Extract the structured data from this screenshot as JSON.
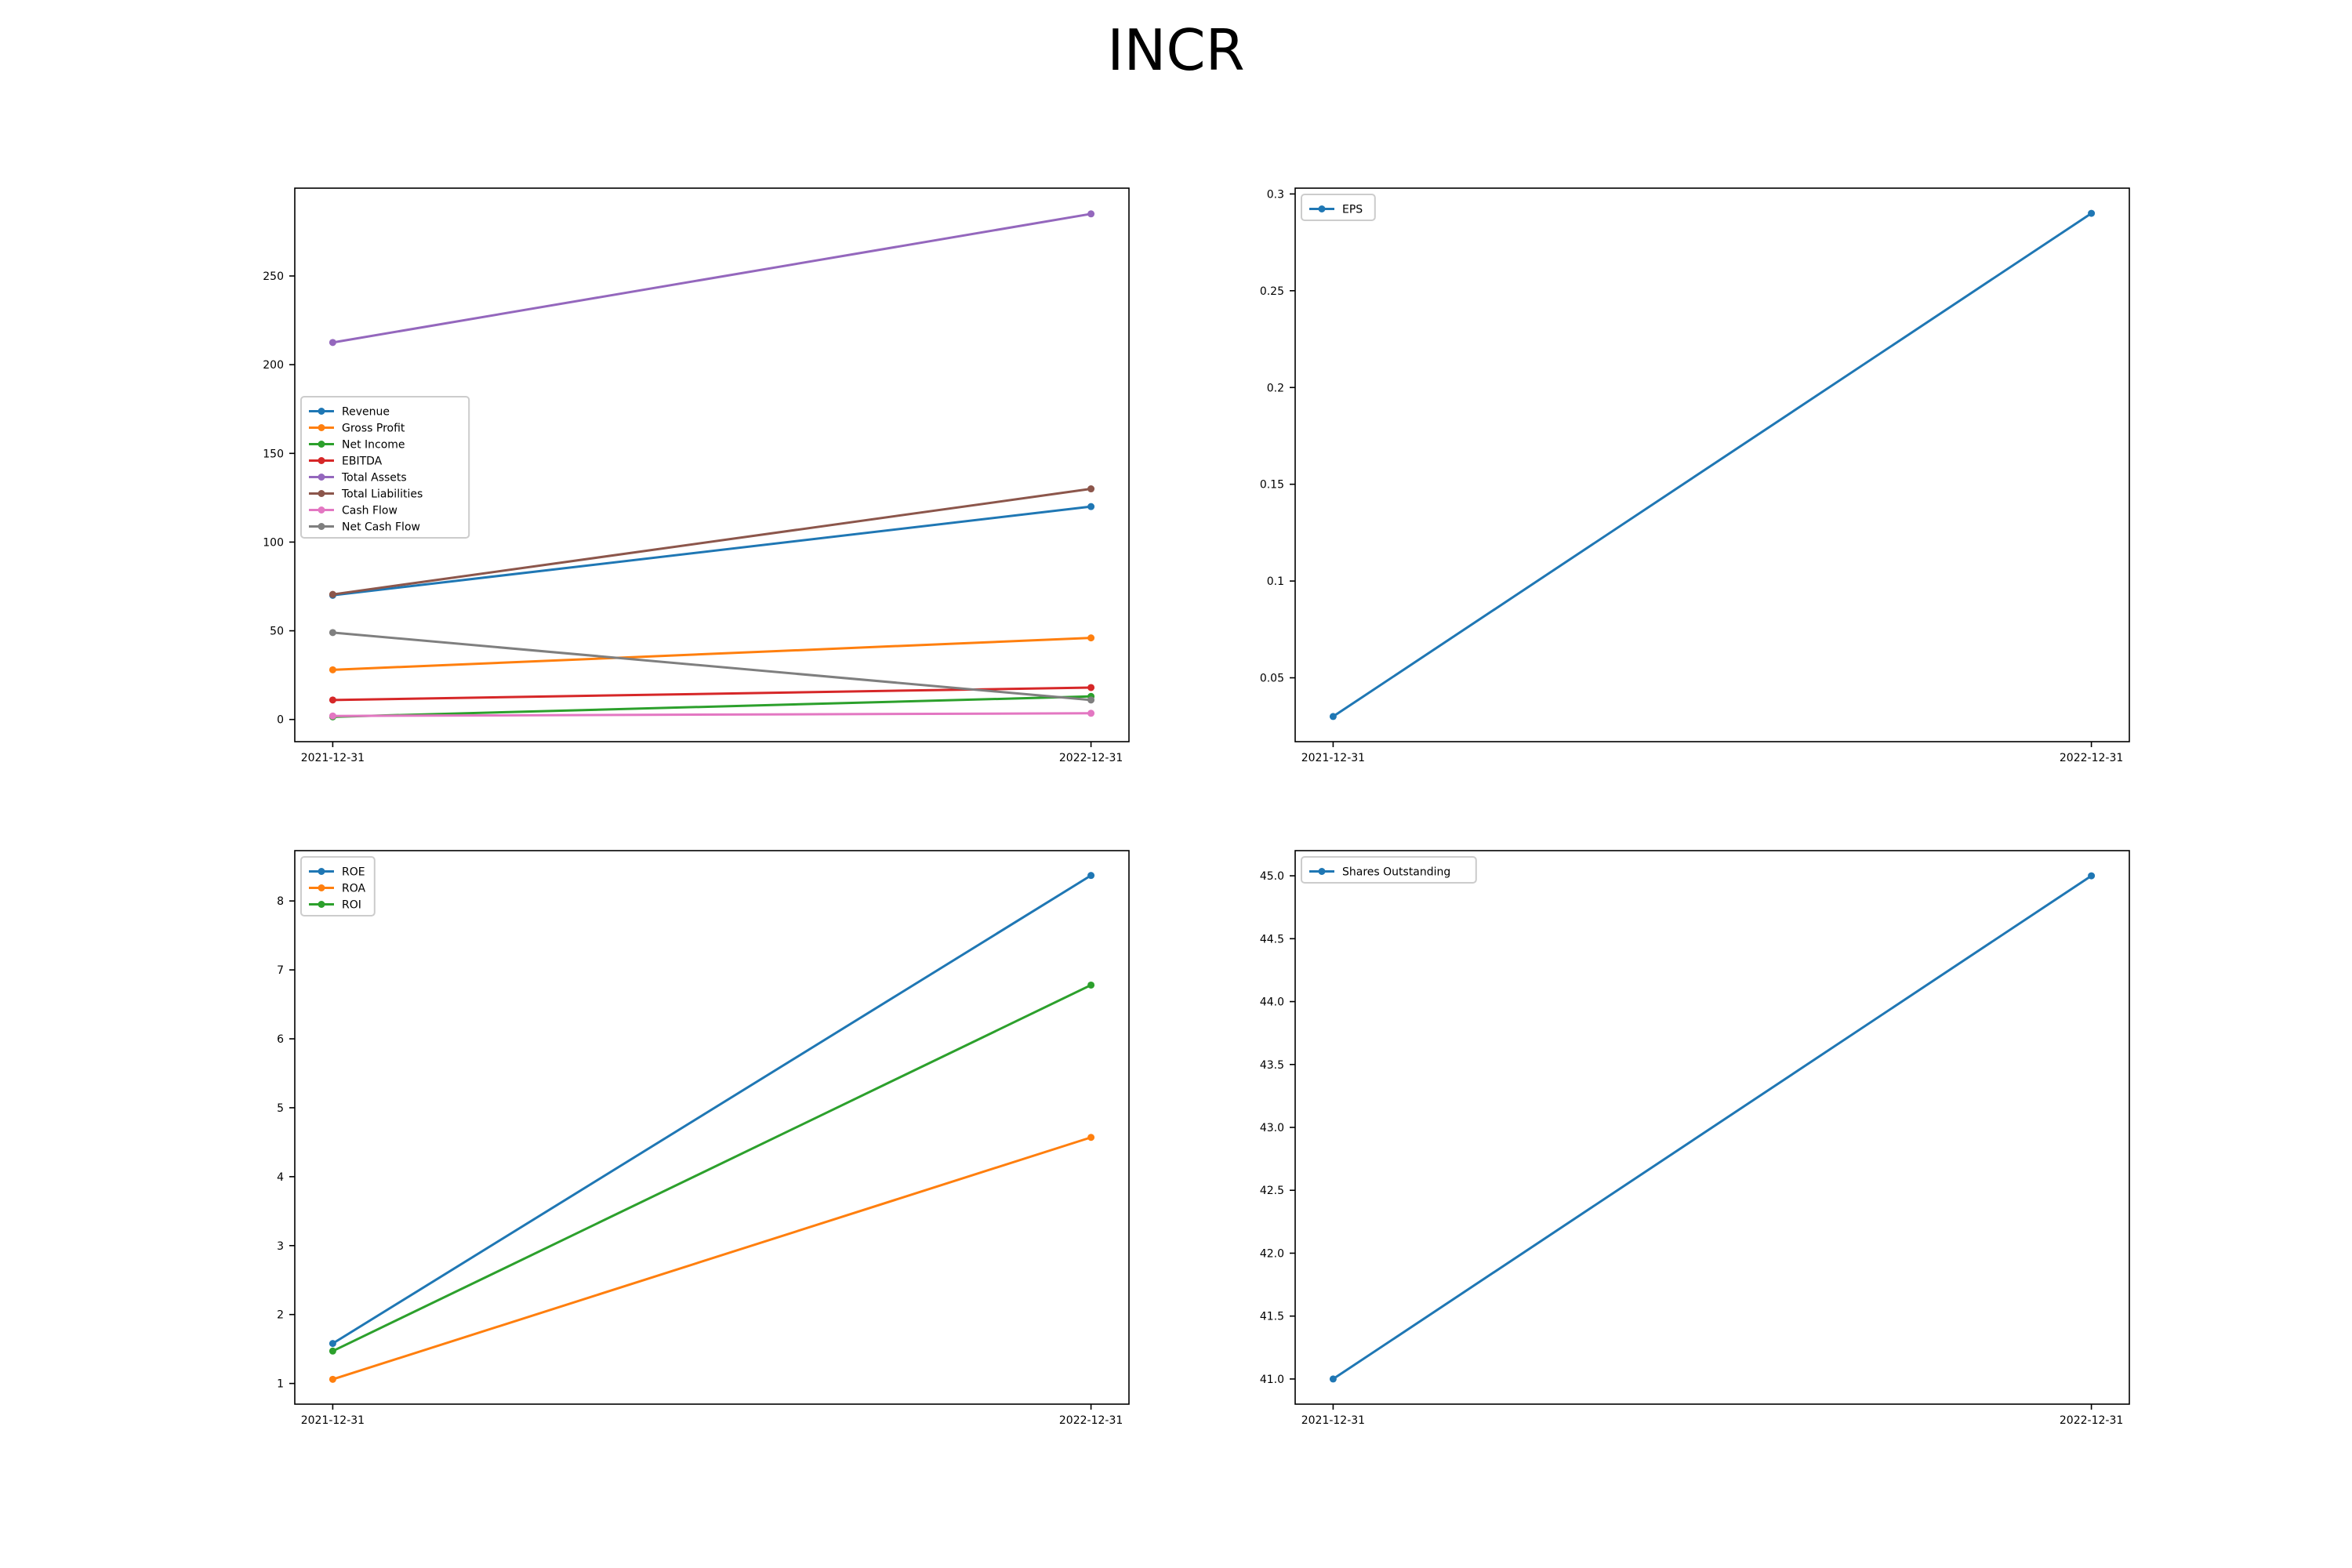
{
  "figure": {
    "title": "INCR"
  },
  "chart_data": [
    {
      "type": "line",
      "title": "",
      "xlabel": "",
      "ylabel": "",
      "x": [
        "2021-12-31",
        "2022-12-31"
      ],
      "yticks": [
        0,
        50,
        100,
        150,
        200,
        250
      ],
      "ylim": [
        -12.5,
        299.5
      ],
      "grid": false,
      "legend_position": "center-left",
      "series": [
        {
          "name": "Revenue",
          "values": [
            70.0,
            120.0
          ],
          "color": "#1f77b4"
        },
        {
          "name": "Gross Profit",
          "values": [
            28.0,
            46.0
          ],
          "color": "#ff7f0e"
        },
        {
          "name": "Net Income",
          "values": [
            1.5,
            13.0
          ],
          "color": "#2ca02c"
        },
        {
          "name": "EBITDA",
          "values": [
            11.0,
            18.0
          ],
          "color": "#d62728"
        },
        {
          "name": "Total Assets",
          "values": [
            212.5,
            285.0
          ],
          "color": "#9467bd"
        },
        {
          "name": "Total Liabilities",
          "values": [
            70.5,
            130.0
          ],
          "color": "#8c564b"
        },
        {
          "name": "Cash Flow",
          "values": [
            2.0,
            3.5
          ],
          "color": "#e377c2"
        },
        {
          "name": "Net Cash Flow",
          "values": [
            49.0,
            11.0
          ],
          "color": "#7f7f7f"
        }
      ]
    },
    {
      "type": "line",
      "title": "",
      "xlabel": "",
      "ylabel": "",
      "x": [
        "2021-12-31",
        "2022-12-31"
      ],
      "yticks": [
        0.05,
        0.1,
        0.15,
        0.2,
        0.25,
        0.3
      ],
      "ylim": [
        0.017,
        0.303
      ],
      "grid": false,
      "legend_position": "upper-left",
      "series": [
        {
          "name": "EPS",
          "values": [
            0.03,
            0.29
          ],
          "color": "#1f77b4"
        }
      ]
    },
    {
      "type": "line",
      "title": "",
      "xlabel": "",
      "ylabel": "",
      "x": [
        "2021-12-31",
        "2022-12-31"
      ],
      "yticks": [
        1,
        2,
        3,
        4,
        5,
        6,
        7,
        8
      ],
      "ylim": [
        0.7,
        8.73
      ],
      "grid": false,
      "legend_position": "upper-left",
      "series": [
        {
          "name": "ROE",
          "values": [
            1.58,
            8.37
          ],
          "color": "#1f77b4"
        },
        {
          "name": "ROA",
          "values": [
            1.06,
            4.57
          ],
          "color": "#ff7f0e"
        },
        {
          "name": "ROI",
          "values": [
            1.47,
            6.78
          ],
          "color": "#2ca02c"
        }
      ]
    },
    {
      "type": "line",
      "title": "",
      "xlabel": "",
      "ylabel": "",
      "x": [
        "2021-12-31",
        "2022-12-31"
      ],
      "yticks": [
        41.0,
        41.5,
        42.0,
        42.5,
        43.0,
        43.5,
        44.0,
        44.5,
        45.0
      ],
      "ytick_labels": [
        "41.0",
        "41.5",
        "42.0",
        "42.5",
        "43.0",
        "43.5",
        "44.0",
        "44.5",
        "45.0"
      ],
      "ylim": [
        40.8,
        45.2
      ],
      "grid": false,
      "legend_position": "upper-left",
      "series": [
        {
          "name": "Shares Outstanding",
          "values": [
            41.0,
            45.0
          ],
          "color": "#1f77b4"
        }
      ]
    }
  ]
}
